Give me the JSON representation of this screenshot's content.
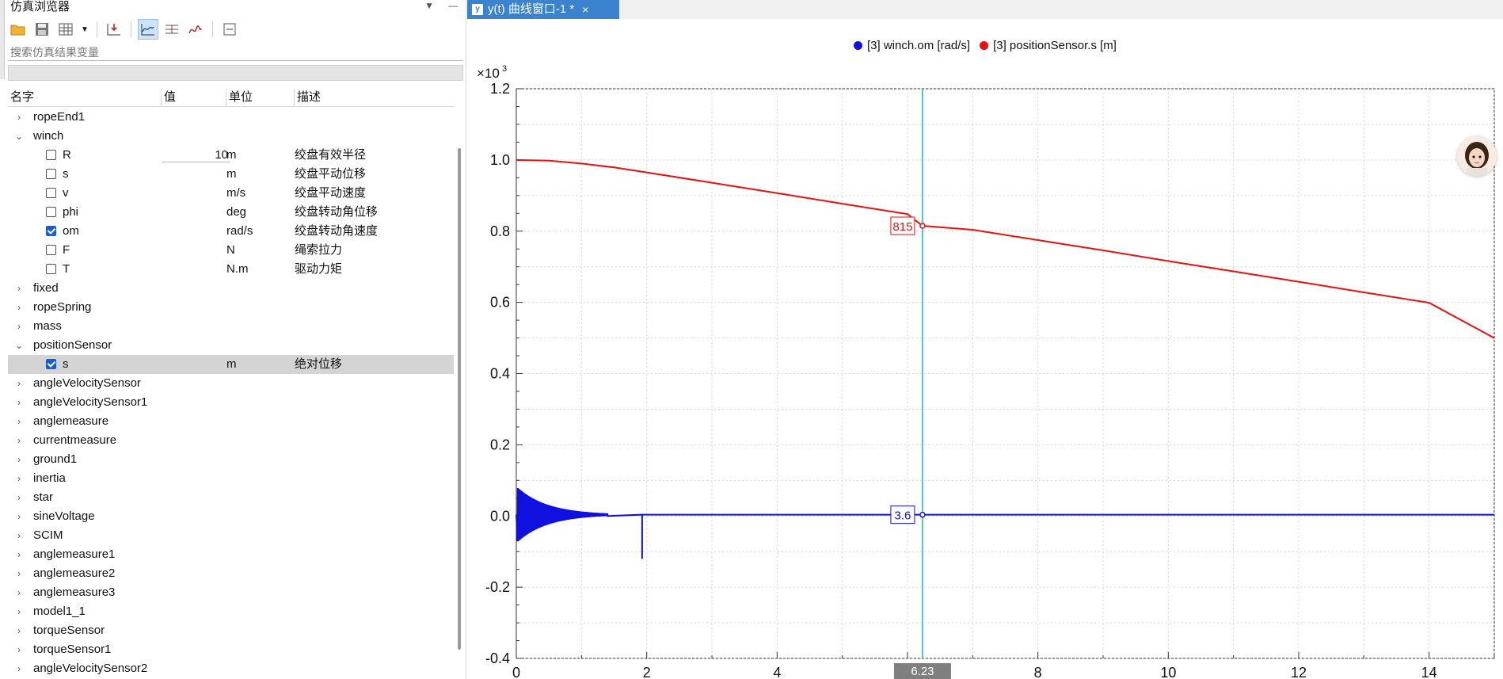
{
  "browser": {
    "title": "仿真浏览器",
    "search_placeholder": "搜索仿真结果变量",
    "columns": [
      "名字",
      "值",
      "单位",
      "描述"
    ],
    "rows": [
      {
        "name": "ropeEnd1",
        "level": 0,
        "expandable": true,
        "expanded": false
      },
      {
        "name": "winch",
        "level": 0,
        "expandable": true,
        "expanded": true
      },
      {
        "name": "R",
        "level": 1,
        "checked": false,
        "value": "10",
        "unit": "m",
        "desc": "绞盘有效半径"
      },
      {
        "name": "s",
        "level": 1,
        "checked": false,
        "unit": "m",
        "desc": "绞盘平动位移"
      },
      {
        "name": "v",
        "level": 1,
        "checked": false,
        "unit": "m/s",
        "desc": "绞盘平动速度"
      },
      {
        "name": "phi",
        "level": 1,
        "checked": false,
        "unit": "deg",
        "desc": "绞盘转动角位移"
      },
      {
        "name": "om",
        "level": 1,
        "checked": true,
        "unit": "rad/s",
        "desc": "绞盘转动角速度"
      },
      {
        "name": "F",
        "level": 1,
        "checked": false,
        "unit": "N",
        "desc": "绳索拉力"
      },
      {
        "name": "T",
        "level": 1,
        "checked": false,
        "unit": "N.m",
        "desc": "驱动力矩"
      },
      {
        "name": "fixed",
        "level": 0,
        "expandable": true,
        "expanded": false
      },
      {
        "name": "ropeSpring",
        "level": 0,
        "expandable": true,
        "expanded": false
      },
      {
        "name": "mass",
        "level": 0,
        "expandable": true,
        "expanded": false
      },
      {
        "name": "positionSensor",
        "level": 0,
        "expandable": true,
        "expanded": true
      },
      {
        "name": "s",
        "level": 1,
        "checked": true,
        "unit": "m",
        "desc": "绝对位移",
        "selected": true
      },
      {
        "name": "angleVelocitySensor",
        "level": 0,
        "expandable": true,
        "expanded": false
      },
      {
        "name": "angleVelocitySensor1",
        "level": 0,
        "expandable": true,
        "expanded": false
      },
      {
        "name": "anglemeasure",
        "level": 0,
        "expandable": true,
        "expanded": false
      },
      {
        "name": "currentmeasure",
        "level": 0,
        "expandable": true,
        "expanded": false
      },
      {
        "name": "ground1",
        "level": 0,
        "expandable": true,
        "expanded": false
      },
      {
        "name": "inertia",
        "level": 0,
        "expandable": true,
        "expanded": false
      },
      {
        "name": "star",
        "level": 0,
        "expandable": true,
        "expanded": false
      },
      {
        "name": "sineVoltage",
        "level": 0,
        "expandable": true,
        "expanded": false
      },
      {
        "name": "SCIM",
        "level": 0,
        "expandable": true,
        "expanded": false
      },
      {
        "name": "anglemeasure1",
        "level": 0,
        "expandable": true,
        "expanded": false
      },
      {
        "name": "anglemeasure2",
        "level": 0,
        "expandable": true,
        "expanded": false
      },
      {
        "name": "anglemeasure3",
        "level": 0,
        "expandable": true,
        "expanded": false
      },
      {
        "name": "model1_1",
        "level": 0,
        "expandable": true,
        "expanded": false
      },
      {
        "name": "torqueSensor",
        "level": 0,
        "expandable": true,
        "expanded": false
      },
      {
        "name": "torqueSensor1",
        "level": 0,
        "expandable": true,
        "expanded": false
      },
      {
        "name": "angleVelocitySensor2",
        "level": 0,
        "expandable": true,
        "expanded": false
      }
    ]
  },
  "plot_tab": {
    "title": "y(t) 曲线窗口-1 *",
    "close": "×"
  },
  "legend": [
    {
      "label": "[3] winch.om [rad/s]",
      "color": "#1010e0"
    },
    {
      "label": "[3] positionSensor.s [m]",
      "color": "#e81010"
    }
  ],
  "chart_data": {
    "type": "line",
    "xlim": [
      0,
      15
    ],
    "ylim": [
      -0.4,
      1.2
    ],
    "y_multiplier_label": "×10",
    "y_multiplier_exp": "3",
    "x_ticks": [
      0,
      2,
      4,
      6,
      8,
      10,
      12,
      14
    ],
    "x_tick_labels": [
      "0",
      "2",
      "4",
      "",
      "8",
      "10",
      "12",
      "14"
    ],
    "y_ticks": [
      -0.4,
      -0.2,
      0.0,
      0.2,
      0.4,
      0.6,
      0.8,
      1.0,
      1.2
    ],
    "y_tick_labels": [
      "-0.4",
      "-0.2",
      "0.0",
      "0.2",
      "0.4",
      "0.6",
      "0.8",
      "1.0",
      "1.2"
    ],
    "grid": true,
    "series": [
      {
        "name": "[3] positionSensor.s [m]",
        "color": "#e81010",
        "x": [
          0,
          0.5,
          1.0,
          1.5,
          2.0,
          3,
          4,
          5,
          6,
          6.23,
          7,
          8,
          9,
          10,
          11,
          12,
          13,
          14,
          15
        ],
        "y": [
          1.0,
          0.998,
          0.99,
          0.979,
          0.965,
          0.936,
          0.907,
          0.877,
          0.848,
          0.815,
          0.804,
          0.775,
          0.746,
          0.716,
          0.687,
          0.658,
          0.628,
          0.599,
          0.5
        ]
      },
      {
        "name": "[3] winch.om [rad/s]",
        "color": "#1010e0",
        "x": [
          0,
          15
        ],
        "y": [
          0.0036,
          0.0036
        ],
        "oscillation": {
          "x_start": 0.02,
          "x_end": 1.4,
          "amplitude_start": 0.075
        },
        "spike": {
          "x": 1.93,
          "y": -0.12
        }
      }
    ],
    "cursor": {
      "x": 6.23,
      "x_label": "6.23",
      "color": "#4ec9c9"
    },
    "cursor_values": [
      {
        "text": "815",
        "color": "#e81010",
        "y": 0.815
      },
      {
        "text": "3.6",
        "color": "#1010e0",
        "y": 0.0036
      }
    ]
  }
}
